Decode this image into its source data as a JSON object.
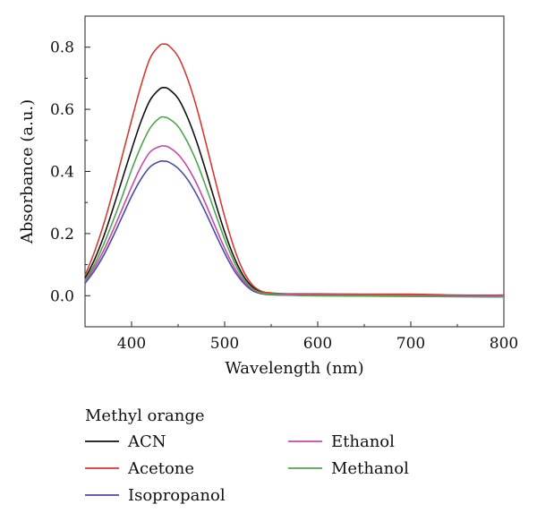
{
  "chart_data": {
    "type": "line",
    "title": "",
    "xlabel": "Wavelength (nm)",
    "ylabel": "Absorbance (a.u.)",
    "xlim": [
      350,
      800
    ],
    "ylim": [
      -0.1,
      0.9
    ],
    "xticks": [
      400,
      500,
      600,
      700,
      800
    ],
    "xtick_labels": [
      "400",
      "500",
      "600",
      "700",
      "800"
    ],
    "yticks": [
      0.0,
      0.2,
      0.4,
      0.6,
      0.8
    ],
    "ytick_labels": [
      "0.0",
      "0.2",
      "0.4",
      "0.6",
      "0.8"
    ],
    "grid": false,
    "legend": {
      "title": "Methyl orange",
      "placement": "below",
      "columns": 2
    },
    "series": [
      {
        "name": "ACN",
        "color": "#111111",
        "x": [
          350,
          360,
          370,
          380,
          390,
          400,
          410,
          420,
          430,
          435,
          440,
          450,
          460,
          470,
          480,
          490,
          500,
          510,
          520,
          530,
          540,
          550,
          560,
          580,
          600,
          650,
          700,
          750,
          800
        ],
        "y": [
          0.055,
          0.115,
          0.19,
          0.28,
          0.375,
          0.47,
          0.56,
          0.63,
          0.665,
          0.67,
          0.665,
          0.635,
          0.575,
          0.495,
          0.4,
          0.3,
          0.205,
          0.125,
          0.065,
          0.028,
          0.012,
          0.008,
          0.006,
          0.004,
          0.003,
          0.002,
          0.001,
          -0.002,
          -0.003
        ]
      },
      {
        "name": "Acetone",
        "color": "#d23a32",
        "x": [
          350,
          360,
          370,
          380,
          390,
          400,
          410,
          420,
          430,
          435,
          440,
          450,
          460,
          470,
          480,
          490,
          500,
          510,
          520,
          530,
          540,
          550,
          560,
          580,
          600,
          650,
          700,
          750,
          800
        ],
        "y": [
          0.065,
          0.14,
          0.23,
          0.335,
          0.45,
          0.565,
          0.675,
          0.765,
          0.805,
          0.81,
          0.805,
          0.77,
          0.7,
          0.605,
          0.49,
          0.37,
          0.255,
          0.155,
          0.08,
          0.034,
          0.014,
          0.009,
          0.007,
          0.006,
          0.006,
          0.005,
          0.005,
          0.002,
          0.002
        ]
      },
      {
        "name": "Isopropanol",
        "color": "#4a4aa8",
        "x": [
          350,
          360,
          370,
          380,
          390,
          400,
          410,
          420,
          430,
          435,
          440,
          450,
          460,
          470,
          480,
          490,
          500,
          510,
          520,
          530,
          540,
          550,
          560,
          580,
          600,
          650,
          700,
          750,
          800
        ],
        "y": [
          0.04,
          0.08,
          0.13,
          0.19,
          0.255,
          0.32,
          0.375,
          0.415,
          0.432,
          0.433,
          0.43,
          0.41,
          0.375,
          0.325,
          0.265,
          0.2,
          0.137,
          0.082,
          0.042,
          0.016,
          0.006,
          0.003,
          0.002,
          0.001,
          0.0,
          -0.001,
          -0.002,
          -0.003,
          -0.004
        ]
      },
      {
        "name": "Ethanol",
        "color": "#c64aab",
        "x": [
          350,
          360,
          370,
          380,
          390,
          400,
          410,
          420,
          430,
          435,
          440,
          450,
          460,
          470,
          480,
          490,
          500,
          510,
          520,
          530,
          540,
          550,
          560,
          580,
          600,
          650,
          700,
          750,
          800
        ],
        "y": [
          0.045,
          0.09,
          0.145,
          0.21,
          0.28,
          0.35,
          0.415,
          0.463,
          0.48,
          0.482,
          0.478,
          0.455,
          0.415,
          0.36,
          0.293,
          0.222,
          0.153,
          0.093,
          0.048,
          0.02,
          0.008,
          0.005,
          0.004,
          0.003,
          0.003,
          0.002,
          0.001,
          -0.001,
          -0.002
        ]
      },
      {
        "name": "Methanol",
        "color": "#4ea64e",
        "x": [
          350,
          360,
          370,
          380,
          390,
          400,
          410,
          420,
          430,
          435,
          440,
          450,
          460,
          470,
          480,
          490,
          500,
          510,
          520,
          530,
          540,
          550,
          560,
          580,
          600,
          650,
          700,
          750,
          800
        ],
        "y": [
          0.05,
          0.1,
          0.165,
          0.24,
          0.32,
          0.405,
          0.48,
          0.54,
          0.572,
          0.575,
          0.57,
          0.545,
          0.495,
          0.43,
          0.35,
          0.265,
          0.182,
          0.11,
          0.056,
          0.023,
          0.009,
          0.005,
          0.003,
          0.001,
          0.0,
          -0.001,
          -0.002,
          -0.003,
          -0.004
        ]
      }
    ]
  }
}
